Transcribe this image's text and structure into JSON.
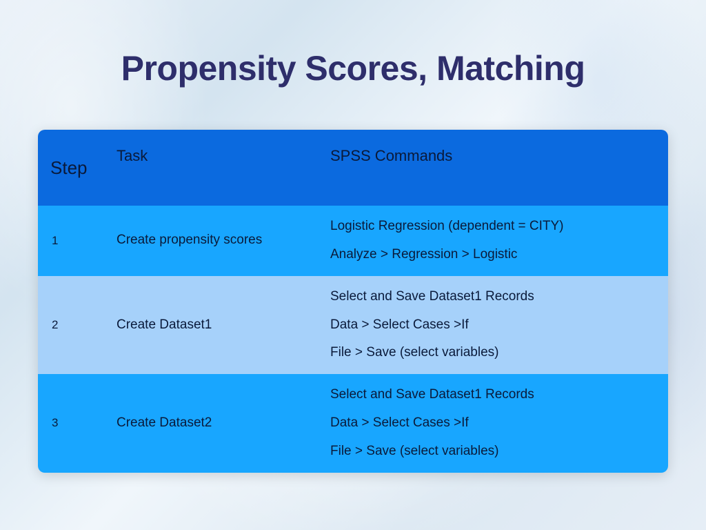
{
  "title": {
    "text": "Propensity Scores, Matching",
    "color": "#2e2e6b",
    "fontsize": 50
  },
  "table": {
    "header_bg": "#0b6adf",
    "header_color": "#0a1a3a",
    "row_colors": [
      "#18a6ff",
      "#a6d1fa",
      "#18a6ff"
    ],
    "row_text_color": "#0a1a3a",
    "columns": [
      "Step",
      "Task",
      "SPSS Commands"
    ],
    "rows": [
      {
        "step": "1",
        "task": "Create propensity scores",
        "commands": [
          "Logistic Regression (dependent = CITY)",
          "Analyze > Regression > Logistic"
        ]
      },
      {
        "step": "2",
        "task": "Create Dataset1",
        "commands": [
          "Select and Save Dataset1 Records",
          "Data > Select Cases >If",
          "File > Save (select variables)"
        ]
      },
      {
        "step": "3",
        "task": "Create Dataset2",
        "commands": [
          "Select and Save Dataset1 Records",
          "Data > Select Cases >If",
          "File > Save (select variables)"
        ]
      }
    ]
  }
}
